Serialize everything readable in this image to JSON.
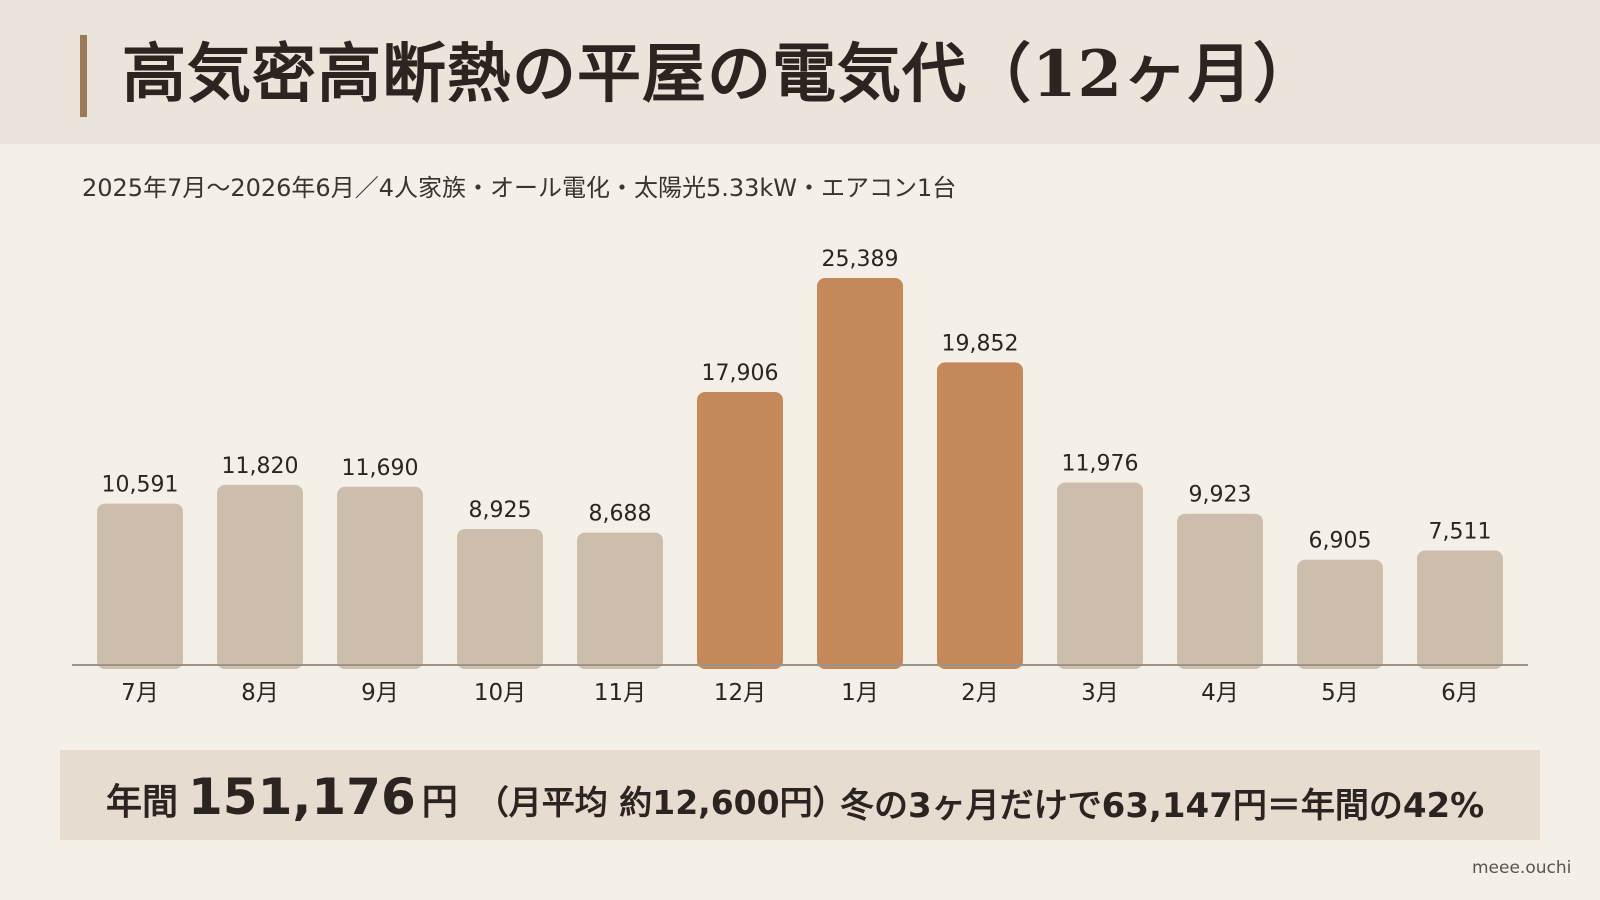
{
  "header": {
    "title": "高気密高断熱の平屋の電気代（12ヶ月）",
    "subtitle": "2025年7月～2026年6月／4人家族・オール電化・太陽光5.33kW・エアコン1台"
  },
  "chart_data": {
    "type": "bar",
    "title": "高気密高断熱の平屋の電気代（12ヶ月）",
    "subtitle": "2025年7月～2026年6月／4人家族・オール電化・太陽光5.33kW・エアコン1台",
    "categories": [
      "7月",
      "8月",
      "9月",
      "10月",
      "11月",
      "12月",
      "1月",
      "2月",
      "3月",
      "4月",
      "5月",
      "6月"
    ],
    "values": [
      10591,
      11820,
      11690,
      8925,
      8688,
      17906,
      25389,
      19852,
      11976,
      9923,
      6905,
      7511
    ],
    "value_labels": [
      "10,591",
      "11,820",
      "11,690",
      "8,925",
      "8,688",
      "17,906",
      "25,389",
      "19,852",
      "11,976",
      "9,923",
      "6,905",
      "7,511"
    ],
    "highlighted": [
      "12月",
      "1月",
      "2月"
    ],
    "colors": {
      "normal": "#cdbdac",
      "highlight": "#c4895a",
      "axis": "#9e9388"
    },
    "xlabel": "",
    "ylabel": "",
    "ylim": [
      0,
      25389
    ],
    "grid": false,
    "legend": "none"
  },
  "summary": {
    "label": "年間",
    "amount": "151,176",
    "unit": "円",
    "average": "（月平均 約12,600円）",
    "winter_note": "冬の3ヶ月だけで63,147円＝年間の42%"
  },
  "credit": "meee.ouchi"
}
